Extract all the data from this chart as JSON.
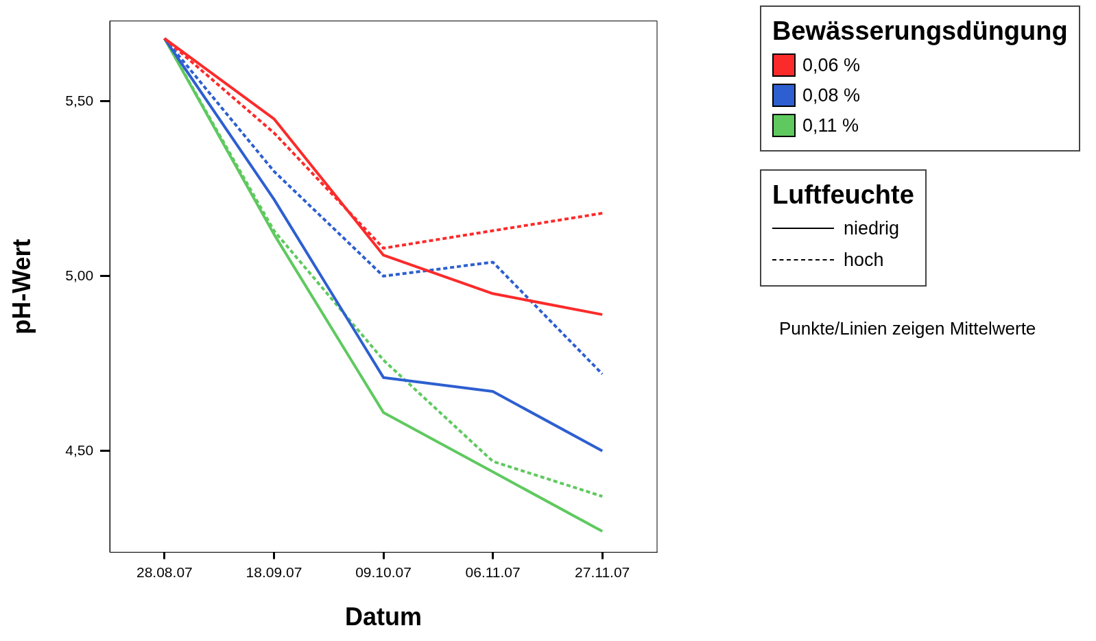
{
  "chart_data": {
    "type": "line",
    "xlabel": "Datum",
    "ylabel": "pH-Wert",
    "categories": [
      "28.08.07",
      "18.09.07",
      "09.10.07",
      "06.11.07",
      "27.11.07"
    ],
    "ylim": [
      4.21,
      5.73
    ],
    "yticks": [
      {
        "value": 4.5,
        "label": "4,50"
      },
      {
        "value": 5.0,
        "label": "5,00"
      },
      {
        "value": 5.5,
        "label": "5,50"
      }
    ],
    "grid": false,
    "legend": "right",
    "legend_title": "Bewässerungsdüngung",
    "marker": "none",
    "annotations": [
      "Luftfeuchte",
      "niedrig",
      "hoch",
      "Punkte/Linien zeigen Mittelwerte"
    ],
    "series": [
      {
        "name": "0,06 %",
        "color": "#fb2b2b",
        "line_style": "solid",
        "values": [
          5.68,
          5.45,
          5.06,
          4.95,
          4.89
        ]
      },
      {
        "color": "#fb2b2b",
        "line_style": "dashed",
        "values": [
          5.68,
          5.41,
          5.08,
          5.13,
          5.18
        ]
      },
      {
        "name": "0,08 %",
        "color": "#2d5fd0",
        "line_style": "solid",
        "values": [
          5.68,
          5.22,
          4.71,
          4.67,
          4.5
        ]
      },
      {
        "color": "#2d5fd0",
        "line_style": "dashed",
        "values": [
          5.68,
          5.3,
          5.0,
          5.04,
          4.72
        ]
      },
      {
        "name": "0,11 %",
        "color": "#5fc95f",
        "line_style": "solid",
        "values": [
          5.68,
          5.12,
          4.61,
          4.44,
          4.27
        ]
      },
      {
        "color": "#5fc95f",
        "line_style": "dashed",
        "values": [
          5.68,
          5.13,
          4.76,
          4.47,
          4.37
        ]
      }
    ]
  }
}
